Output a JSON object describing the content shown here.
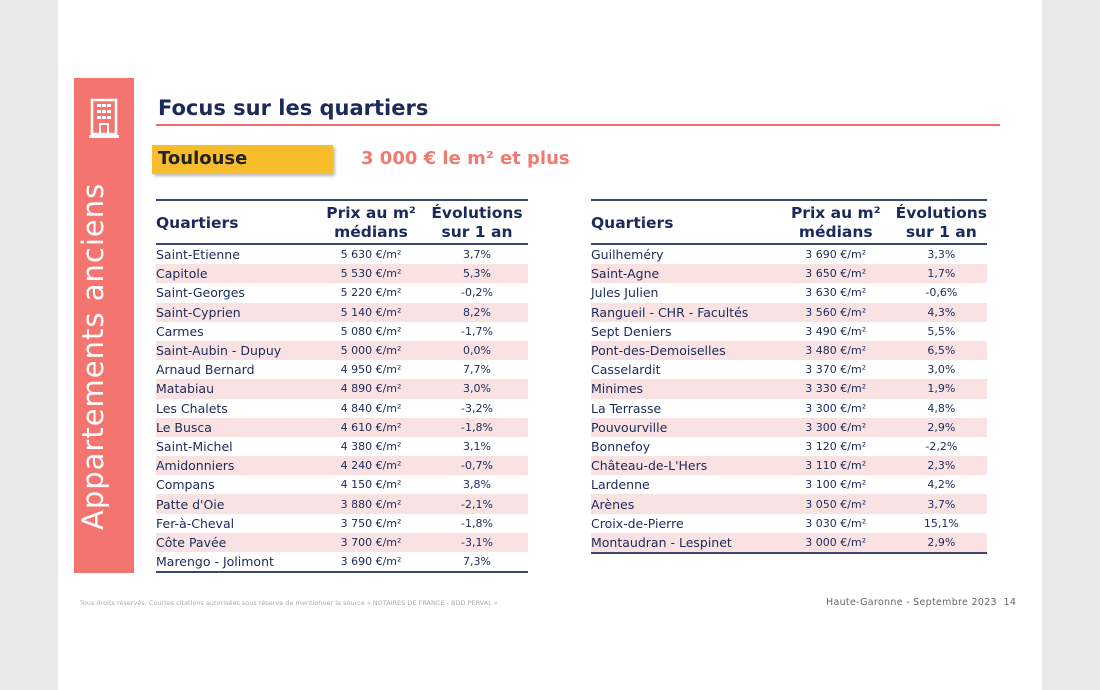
{
  "sidebar": {
    "label": "Appartements anciens",
    "icon": "building-icon"
  },
  "header": {
    "title": "Focus sur les quartiers",
    "city": "Toulouse",
    "subtitle": "3 000 € le m² et plus"
  },
  "table_headers": {
    "quartiers": "Quartiers",
    "prix_l1": "Prix au m²",
    "prix_l2": "médians",
    "evol_l1": "Évolutions",
    "evol_l2": "sur 1 an"
  },
  "left_table": [
    [
      "Saint-Etienne",
      "5 630 €/m²",
      "3,7%"
    ],
    [
      "Capitole",
      "5 530 €/m²",
      "5,3%"
    ],
    [
      "Saint-Georges",
      "5 220 €/m²",
      "-0,2%"
    ],
    [
      "Saint-Cyprien",
      "5 140 €/m²",
      "8,2%"
    ],
    [
      "Carmes",
      "5 080 €/m²",
      "-1,7%"
    ],
    [
      "Saint-Aubin - Dupuy",
      "5 000 €/m²",
      "0,0%"
    ],
    [
      "Arnaud Bernard",
      "4 950 €/m²",
      "7,7%"
    ],
    [
      "Matabiau",
      "4 890 €/m²",
      "3,0%"
    ],
    [
      "Les Chalets",
      "4 840 €/m²",
      "-3,2%"
    ],
    [
      "Le Busca",
      "4 610 €/m²",
      "-1,8%"
    ],
    [
      "Saint-Michel",
      "4 380 €/m²",
      "3,1%"
    ],
    [
      "Amidonniers",
      "4 240 €/m²",
      "-0,7%"
    ],
    [
      "Compans",
      "4 150 €/m²",
      "3,8%"
    ],
    [
      "Patte d'Oie",
      "3 880 €/m²",
      "-2,1%"
    ],
    [
      "Fer-à-Cheval",
      "3 750 €/m²",
      "-1,8%"
    ],
    [
      "Côte Pavée",
      "3 700 €/m²",
      "-3,1%"
    ],
    [
      "Marengo - Jolimont",
      "3 690 €/m²",
      "7,3%"
    ]
  ],
  "right_table": [
    [
      "Guilheméry",
      "3 690 €/m²",
      "3,3%"
    ],
    [
      "Saint-Agne",
      "3 650 €/m²",
      "1,7%"
    ],
    [
      "Jules Julien",
      "3 630 €/m²",
      "-0,6%"
    ],
    [
      "Rangueil - CHR - Facultés",
      "3 560 €/m²",
      "4,3%"
    ],
    [
      "Sept Deniers",
      "3 490 €/m²",
      "5,5%"
    ],
    [
      "Pont-des-Demoiselles",
      "3 480 €/m²",
      "6,5%"
    ],
    [
      "Casselardit",
      "3 370 €/m²",
      "3,0%"
    ],
    [
      "Minimes",
      "3 330 €/m²",
      "1,9%"
    ],
    [
      "La Terrasse",
      "3 300 €/m²",
      "4,8%"
    ],
    [
      "Pouvourville",
      "3 300 €/m²",
      "2,9%"
    ],
    [
      "Bonnefoy",
      "3 120 €/m²",
      "-2,2%"
    ],
    [
      "Château-de-L'Hers",
      "3 110 €/m²",
      "2,3%"
    ],
    [
      "Lardenne",
      "3 100 €/m²",
      "4,2%"
    ],
    [
      "Arènes",
      "3 050 €/m²",
      "3,7%"
    ],
    [
      "Croix-de-Pierre",
      "3 030 €/m²",
      "15,1%"
    ],
    [
      "Montaudran - Lespinet",
      "3 000 €/m²",
      "2,9%"
    ]
  ],
  "footer": {
    "left": "Tous droits réservés. Courtes citations autorisées sous réserve de mentionner la source « NOTAIRES DE FRANCE - BDD PERVAL ».",
    "right": "Haute-Garonne - Septembre 2023",
    "page": "14"
  }
}
